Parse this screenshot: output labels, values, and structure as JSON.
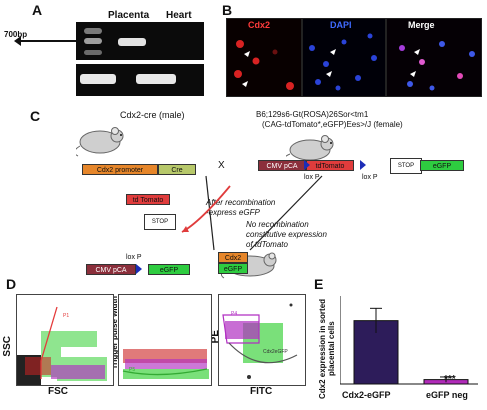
{
  "panels": {
    "a": {
      "letter": "A",
      "lane1": "Placenta",
      "lane2": "Heart",
      "marker": "700bp"
    },
    "b": {
      "letter": "B",
      "labels": [
        "Cdx2",
        "DAPI",
        "Merge"
      ]
    },
    "c": {
      "letter": "C",
      "male": "Cdx2-cre (male)",
      "female_line1": "B6;129s6-Gt(ROSA)26Sor<tm1",
      "female_line2": "(CAG-tdTomato*,eGFP)Ees>/J (female)",
      "cross": "X",
      "cdx2_promoter": "Cdx2 promoter",
      "cre": "Cre",
      "cmv_pca": "CMV pCA",
      "tdtomato": "tdTomato",
      "stop": "STOP",
      "egfp": "eGFP",
      "loxp": "lox P",
      "after": "After recombination",
      "express": "-express eGFP",
      "norec1": "No recombination",
      "norec2": "constitutive expression",
      "norec3": "of tdTomato",
      "tdtomato_free": "td Tomato",
      "cmv_pca2": "CMV pCA",
      "egfp2": "eGFP",
      "pup1": "Cdx2",
      "pup2": "eGFP"
    },
    "d": {
      "letter": "D",
      "ssc": "SSC",
      "fsc": "FSC",
      "tpw": "Trigger pulse width",
      "pe": "PE",
      "fitc": "FITC",
      "gate_p1": "P1",
      "gate_p4": "P4",
      "gate_p5": "P5",
      "gate_cdx2": "Cdx2eGFP"
    },
    "e": {
      "letter": "E",
      "ylabel": "Cdx2 expression in sorted placental cells",
      "sig": "***"
    }
  },
  "chart_data": {
    "type": "bar",
    "categories": [
      "Cdx2-eGFP",
      "eGFP neg"
    ],
    "values": [
      72,
      5
    ],
    "errors": [
      14,
      3
    ],
    "ylim": [
      0,
      100
    ],
    "yticks": [
      0,
      20,
      40,
      60,
      80,
      100
    ],
    "colors": [
      "#2d1c5a",
      "#b02ab8"
    ]
  }
}
